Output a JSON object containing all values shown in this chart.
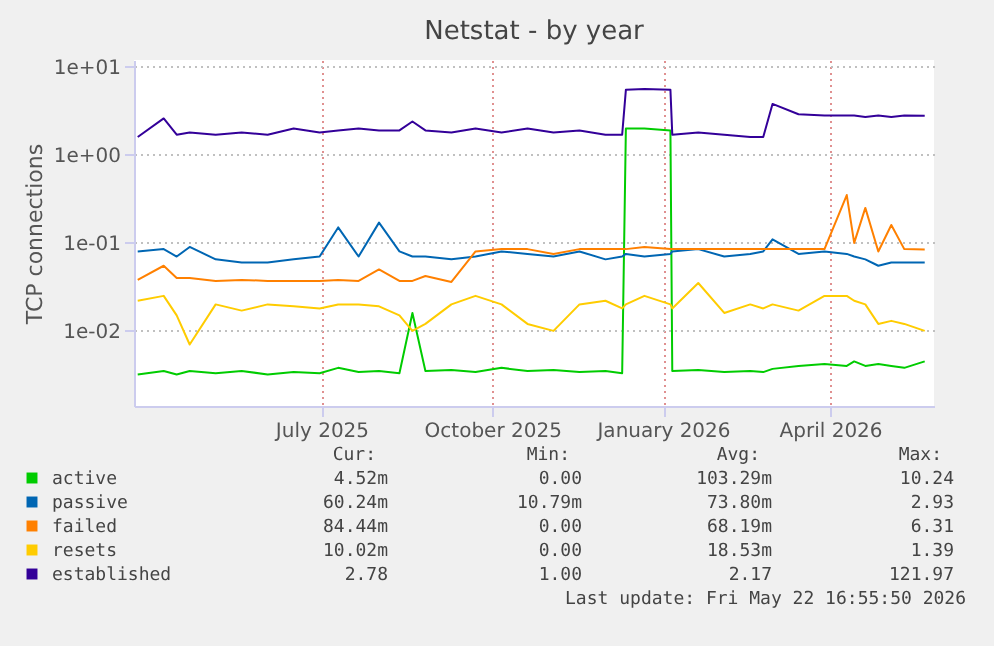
{
  "chart_data": {
    "type": "line",
    "title": "Netstat - by year",
    "ylabel": "TCP connections",
    "x": [
      "2025-03-24",
      "2025-04-07",
      "2025-04-14",
      "2025-04-21",
      "2025-05-05",
      "2025-05-19",
      "2025-06-02",
      "2025-06-16",
      "2025-06-30",
      "2025-07-10",
      "2025-07-21",
      "2025-08-01",
      "2025-08-12",
      "2025-08-19",
      "2025-08-26",
      "2025-09-09",
      "2025-09-22",
      "2025-10-06",
      "2025-10-20",
      "2025-11-03",
      "2025-11-17",
      "2025-12-01",
      "2025-12-10",
      "2025-12-12",
      "2025-12-22",
      "2026-01-05",
      "2026-01-06",
      "2026-01-20",
      "2026-02-03",
      "2026-02-17",
      "2026-02-24",
      "2026-03-01",
      "2026-03-15",
      "2026-03-29",
      "2026-04-10",
      "2026-04-14",
      "2026-04-20",
      "2026-04-27",
      "2026-05-04",
      "2026-05-11",
      "2026-05-22"
    ],
    "series": [
      {
        "name": "active",
        "color": "#00cc00",
        "values": [
          0.0032,
          0.0035,
          0.0032,
          0.0035,
          0.0033,
          0.0035,
          0.0032,
          0.0034,
          0.0033,
          0.0038,
          0.0034,
          0.0035,
          0.0033,
          0.016,
          0.0035,
          0.0036,
          0.0034,
          0.0038,
          0.0035,
          0.0036,
          0.0034,
          0.0035,
          0.0033,
          2.0,
          2.0,
          1.9,
          0.0035,
          0.0036,
          0.0034,
          0.0035,
          0.0034,
          0.0037,
          0.004,
          0.0042,
          0.004,
          0.0045,
          0.004,
          0.0042,
          0.004,
          0.0038,
          0.0045
        ]
      },
      {
        "name": "passive",
        "color": "#0066b3",
        "values": [
          0.08,
          0.085,
          0.07,
          0.09,
          0.065,
          0.06,
          0.06,
          0.065,
          0.07,
          0.15,
          0.07,
          0.17,
          0.08,
          0.07,
          0.07,
          0.065,
          0.07,
          0.08,
          0.075,
          0.07,
          0.08,
          0.065,
          0.07,
          0.075,
          0.07,
          0.075,
          0.08,
          0.085,
          0.07,
          0.075,
          0.08,
          0.11,
          0.075,
          0.08,
          0.075,
          0.07,
          0.065,
          0.055,
          0.06,
          0.06,
          0.06
        ]
      },
      {
        "name": "failed",
        "color": "#ff8000",
        "values": [
          0.038,
          0.055,
          0.04,
          0.04,
          0.037,
          0.038,
          0.037,
          0.037,
          0.037,
          0.038,
          0.037,
          0.05,
          0.037,
          0.037,
          0.042,
          0.036,
          0.08,
          0.085,
          0.085,
          0.075,
          0.085,
          0.085,
          0.085,
          0.085,
          0.09,
          0.085,
          0.085,
          0.085,
          0.085,
          0.085,
          0.085,
          0.085,
          0.085,
          0.085,
          0.35,
          0.1,
          0.25,
          0.08,
          0.16,
          0.085,
          0.084
        ]
      },
      {
        "name": "resets",
        "color": "#ffcc00",
        "values": [
          0.022,
          0.025,
          0.015,
          0.007,
          0.02,
          0.017,
          0.02,
          0.019,
          0.018,
          0.02,
          0.02,
          0.019,
          0.015,
          0.01,
          0.012,
          0.02,
          0.025,
          0.02,
          0.012,
          0.01,
          0.02,
          0.022,
          0.018,
          0.02,
          0.025,
          0.02,
          0.018,
          0.035,
          0.016,
          0.02,
          0.018,
          0.02,
          0.017,
          0.025,
          0.025,
          0.022,
          0.02,
          0.012,
          0.013,
          0.012,
          0.01
        ]
      },
      {
        "name": "established",
        "color": "#330099",
        "values": [
          1.6,
          2.6,
          1.7,
          1.8,
          1.7,
          1.8,
          1.7,
          2.0,
          1.8,
          1.9,
          2.0,
          1.9,
          1.9,
          2.4,
          1.9,
          1.8,
          2.0,
          1.8,
          2.0,
          1.8,
          1.9,
          1.7,
          1.7,
          5.5,
          5.6,
          5.5,
          1.7,
          1.8,
          1.7,
          1.6,
          1.6,
          3.8,
          2.9,
          2.8,
          2.8,
          2.8,
          2.7,
          2.8,
          2.7,
          2.8,
          2.78
        ]
      }
    ],
    "xlim": [
      "2025-03-22",
      "2026-05-27"
    ],
    "xticks": [
      {
        "value": "2025-07-01",
        "label": "July 2025"
      },
      {
        "value": "2025-10-01",
        "label": "October 2025"
      },
      {
        "value": "2026-01-01",
        "label": "January 2026"
      },
      {
        "value": "2026-04-01",
        "label": "April 2026"
      }
    ],
    "ylim": [
      0.0014,
      12
    ],
    "yticks": [
      {
        "value": 0.01,
        "label": "1e-02"
      },
      {
        "value": 0.1,
        "label": "1e-01"
      },
      {
        "value": 1,
        "label": "1e+00"
      },
      {
        "value": 10,
        "label": "1e+01"
      }
    ],
    "log": "y",
    "grid": true,
    "legend": "bottom",
    "annotations": [
      "Cur:",
      "Min:",
      "Avg:",
      "Max:",
      "4.52m",
      "0.00",
      "103.29m",
      "10.24",
      "60.24m",
      "10.79m",
      "73.80m",
      "2.93",
      "84.44m",
      "0.00",
      "68.19m",
      "6.31",
      "10.02m",
      "0.00",
      "18.53m",
      "1.39",
      "2.78",
      "1.00",
      "2.17",
      "121.97",
      "Last update: Fri May 22 16:55:50 2026"
    ]
  }
}
